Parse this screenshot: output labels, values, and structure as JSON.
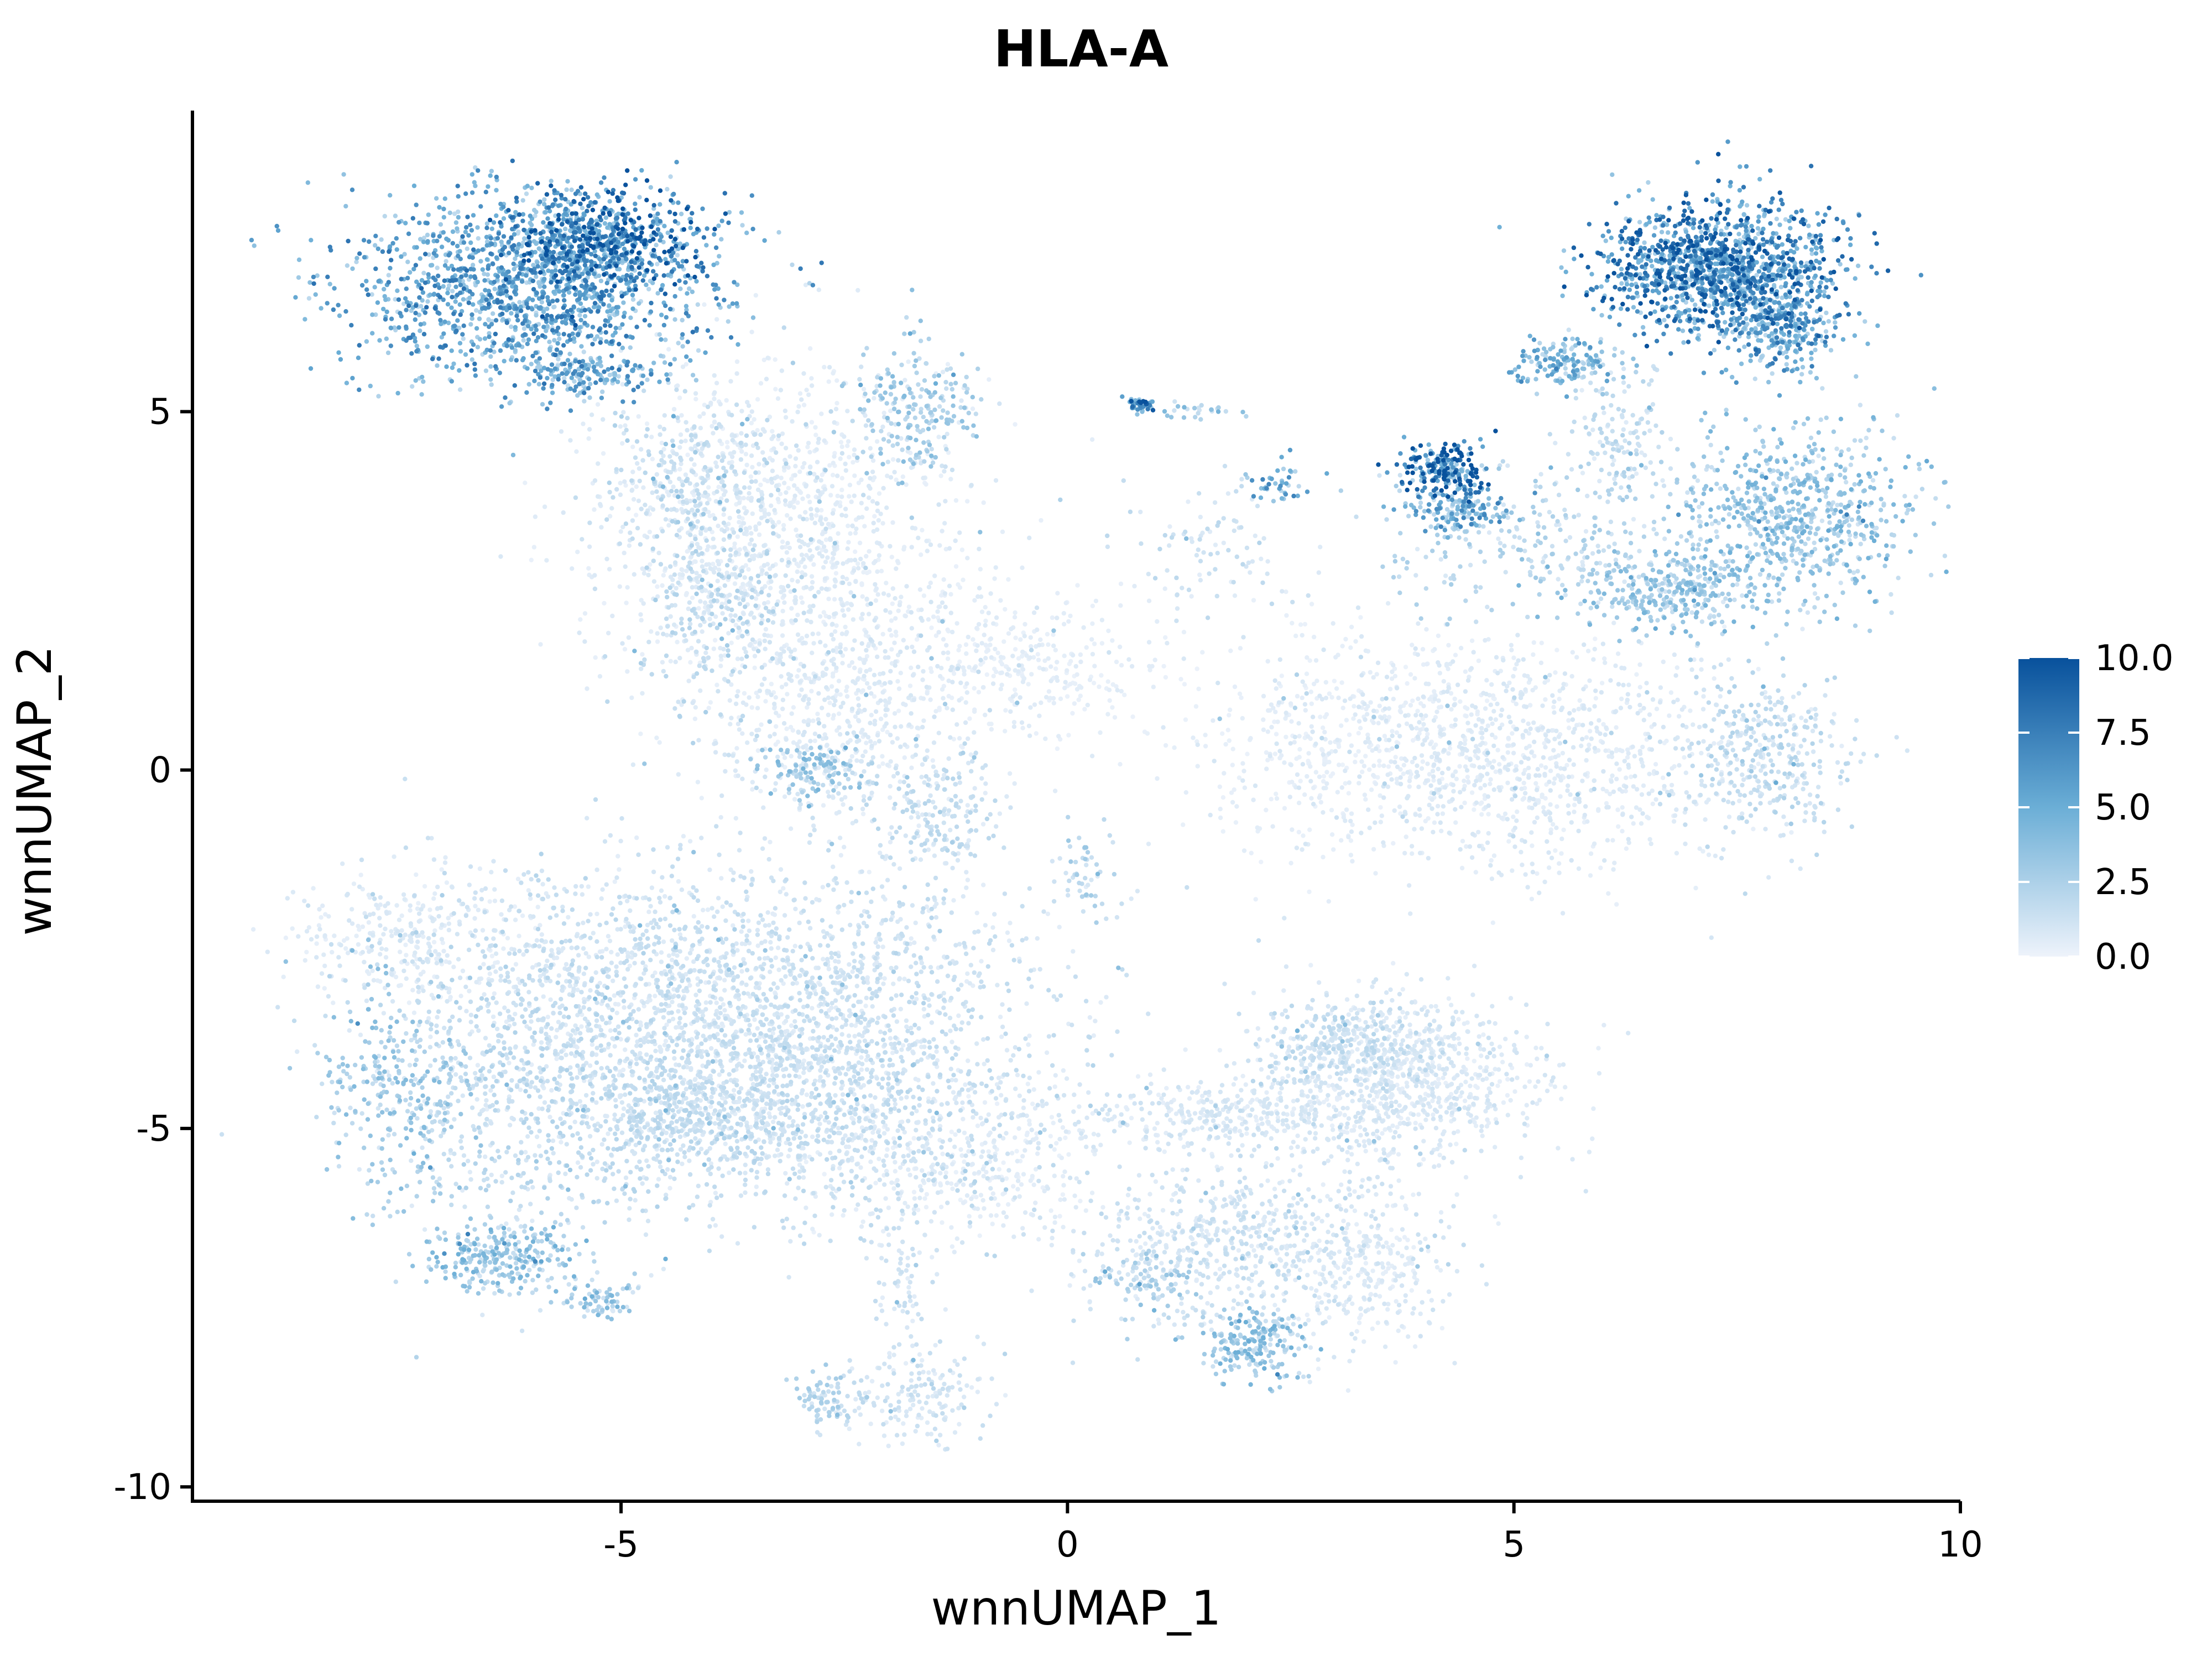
{
  "chart_data": {
    "type": "scatter",
    "title": "HLA-A",
    "xlabel": "wnnUMAP_1",
    "ylabel": "wnnUMAP_2",
    "xlim": [
      -9.8,
      10
    ],
    "ylim": [
      -10.2,
      9.2
    ],
    "x_ticks": [
      -5,
      0,
      5,
      10
    ],
    "x_tick_labels": [
      "-5",
      "0",
      "5",
      "10"
    ],
    "y_ticks": [
      5,
      0,
      -5,
      -10
    ],
    "y_tick_labels": [
      "5",
      "0",
      "-5",
      "-10"
    ],
    "grid": false,
    "legend_position": "right",
    "color_scale": {
      "min": 0,
      "max": 10,
      "low_color": "#eef3fb",
      "mid_color": "#6baed6",
      "high_color": "#08519c",
      "ticks": [
        0,
        2.5,
        5,
        7.5,
        10
      ],
      "tick_labels": [
        "0.0",
        "2.5",
        "5.0",
        "7.5",
        "10.0"
      ]
    },
    "clusters": [
      {
        "cx": -6.0,
        "cy": 6.7,
        "sx": 1.0,
        "sy": 0.65,
        "n": 1500,
        "expr": 5.0
      },
      {
        "cx": -5.2,
        "cy": 7.4,
        "sx": 0.55,
        "sy": 0.35,
        "n": 600,
        "expr": 6.8
      },
      {
        "cx": -5.3,
        "cy": 5.5,
        "sx": 0.35,
        "sy": 0.12,
        "n": 120,
        "expr": 4.5
      },
      {
        "cx": -4.2,
        "cy": 4.2,
        "sx": 0.55,
        "sy": 0.45,
        "n": 220,
        "expr": 1.2
      },
      {
        "cx": -3.2,
        "cy": 3.3,
        "sx": 1.0,
        "sy": 1.1,
        "n": 1200,
        "expr": 0.5
      },
      {
        "cx": -1.7,
        "cy": 5.0,
        "sx": 0.35,
        "sy": 0.45,
        "n": 220,
        "expr": 2.5
      },
      {
        "cx": -4.0,
        "cy": 2.5,
        "sx": 0.45,
        "sy": 0.9,
        "n": 300,
        "expr": 1.5
      },
      {
        "cx": -2.6,
        "cy": 0.9,
        "sx": 0.8,
        "sy": 0.8,
        "n": 600,
        "expr": 0.6
      },
      {
        "cx": -2.8,
        "cy": 0.0,
        "sx": 0.3,
        "sy": 0.2,
        "n": 120,
        "expr": 2.8
      },
      {
        "cx": -1.5,
        "cy": -0.6,
        "sx": 0.4,
        "sy": 0.5,
        "n": 200,
        "expr": 1.3
      },
      {
        "cx": -0.5,
        "cy": 1.5,
        "sx": 0.6,
        "sy": 0.5,
        "n": 300,
        "expr": 0.4
      },
      {
        "cx": 0.2,
        "cy": -1.4,
        "sx": 0.12,
        "sy": 0.3,
        "n": 45,
        "expr": 2.0
      },
      {
        "cx": 0.8,
        "cy": 5.1,
        "sx": 0.08,
        "sy": 0.05,
        "n": 40,
        "expr": 6.5
      },
      {
        "cx": 1.4,
        "cy": 5.0,
        "sx": 0.3,
        "sy": 0.05,
        "n": 25,
        "expr": 3.0
      },
      {
        "cx": 2.4,
        "cy": 4.0,
        "sx": 0.2,
        "sy": 0.15,
        "n": 40,
        "expr": 4.5
      },
      {
        "cx": 1.6,
        "cy": 3.0,
        "sx": 0.5,
        "sy": 0.55,
        "n": 90,
        "expr": 1.2
      },
      {
        "cx": 7.3,
        "cy": 7.0,
        "sx": 0.65,
        "sy": 0.45,
        "n": 1300,
        "expr": 6.2
      },
      {
        "cx": 8.0,
        "cy": 6.2,
        "sx": 0.3,
        "sy": 0.3,
        "n": 300,
        "expr": 5.0
      },
      {
        "cx": 5.6,
        "cy": 5.7,
        "sx": 0.3,
        "sy": 0.15,
        "n": 150,
        "expr": 3.8
      },
      {
        "cx": 4.2,
        "cy": 4.2,
        "sx": 0.25,
        "sy": 0.2,
        "n": 200,
        "expr": 7.8
      },
      {
        "cx": 4.4,
        "cy": 3.6,
        "sx": 0.3,
        "sy": 0.15,
        "n": 120,
        "expr": 4.5
      },
      {
        "cx": 6.2,
        "cy": 4.6,
        "sx": 0.3,
        "sy": 0.5,
        "n": 140,
        "expr": 1.4
      },
      {
        "cx": 5.2,
        "cy": 3.2,
        "sx": 0.8,
        "sy": 0.6,
        "n": 250,
        "expr": 1.8
      },
      {
        "cx": 8.2,
        "cy": 3.6,
        "sx": 0.7,
        "sy": 0.6,
        "n": 700,
        "expr": 3.0
      },
      {
        "cx": 6.8,
        "cy": 2.5,
        "sx": 0.55,
        "sy": 0.3,
        "n": 350,
        "expr": 2.8
      },
      {
        "cx": 7.8,
        "cy": 0.2,
        "sx": 0.45,
        "sy": 0.55,
        "n": 350,
        "expr": 1.5
      },
      {
        "cx": 5.0,
        "cy": 0.2,
        "sx": 1.3,
        "sy": 0.8,
        "n": 1100,
        "expr": 0.6
      },
      {
        "cx": 3.0,
        "cy": 0.5,
        "sx": 1.0,
        "sy": 0.7,
        "n": 350,
        "expr": 0.3
      },
      {
        "cx": -7.3,
        "cy": -2.3,
        "sx": 0.7,
        "sy": 0.5,
        "n": 300,
        "expr": 0.6
      },
      {
        "cx": -3.8,
        "cy": -3.3,
        "sx": 1.7,
        "sy": 1.0,
        "n": 2200,
        "expr": 1.1
      },
      {
        "cx": -2.6,
        "cy": -4.7,
        "sx": 1.1,
        "sy": 0.9,
        "n": 900,
        "expr": 1.2
      },
      {
        "cx": -4.3,
        "cy": -4.8,
        "sx": 0.7,
        "sy": 0.5,
        "n": 500,
        "expr": 1.4
      },
      {
        "cx": -6.0,
        "cy": -4.5,
        "sx": 0.7,
        "sy": 1.3,
        "n": 600,
        "expr": 1.5
      },
      {
        "cx": -7.5,
        "cy": -4.5,
        "sx": 0.4,
        "sy": 0.8,
        "n": 300,
        "expr": 2.6
      },
      {
        "cx": -6.3,
        "cy": -6.8,
        "sx": 0.45,
        "sy": 0.25,
        "n": 250,
        "expr": 3.0
      },
      {
        "cx": -5.2,
        "cy": -7.4,
        "sx": 0.2,
        "sy": 0.12,
        "n": 60,
        "expr": 2.8
      },
      {
        "cx": -2.7,
        "cy": -8.8,
        "sx": 0.2,
        "sy": 0.2,
        "n": 80,
        "expr": 1.8
      },
      {
        "cx": -1.7,
        "cy": -8.7,
        "sx": 0.4,
        "sy": 0.4,
        "n": 180,
        "expr": 1.0
      },
      {
        "cx": -1.8,
        "cy": -7.2,
        "sx": 0.15,
        "sy": 0.5,
        "n": 60,
        "expr": 1.0
      },
      {
        "cx": -1.0,
        "cy": -5.5,
        "sx": 0.8,
        "sy": 0.5,
        "n": 300,
        "expr": 0.4
      },
      {
        "cx": 1.8,
        "cy": -4.8,
        "sx": 1.2,
        "sy": 0.25,
        "n": 400,
        "expr": 0.8
      },
      {
        "cx": 3.8,
        "cy": -4.3,
        "sx": 0.8,
        "sy": 0.6,
        "n": 800,
        "expr": 0.7
      },
      {
        "cx": 3.2,
        "cy": -3.9,
        "sx": 0.5,
        "sy": 0.3,
        "n": 300,
        "expr": 1.3
      },
      {
        "cx": 2.0,
        "cy": -6.6,
        "sx": 1.0,
        "sy": 0.7,
        "n": 700,
        "expr": 1.0
      },
      {
        "cx": 2.1,
        "cy": -8.0,
        "sx": 0.3,
        "sy": 0.25,
        "n": 200,
        "expr": 3.0
      },
      {
        "cx": 0.9,
        "cy": -7.1,
        "sx": 0.3,
        "sy": 0.2,
        "n": 80,
        "expr": 2.2
      },
      {
        "cx": 3.5,
        "cy": -7.0,
        "sx": 0.4,
        "sy": 0.5,
        "n": 200,
        "expr": 0.6
      }
    ]
  }
}
